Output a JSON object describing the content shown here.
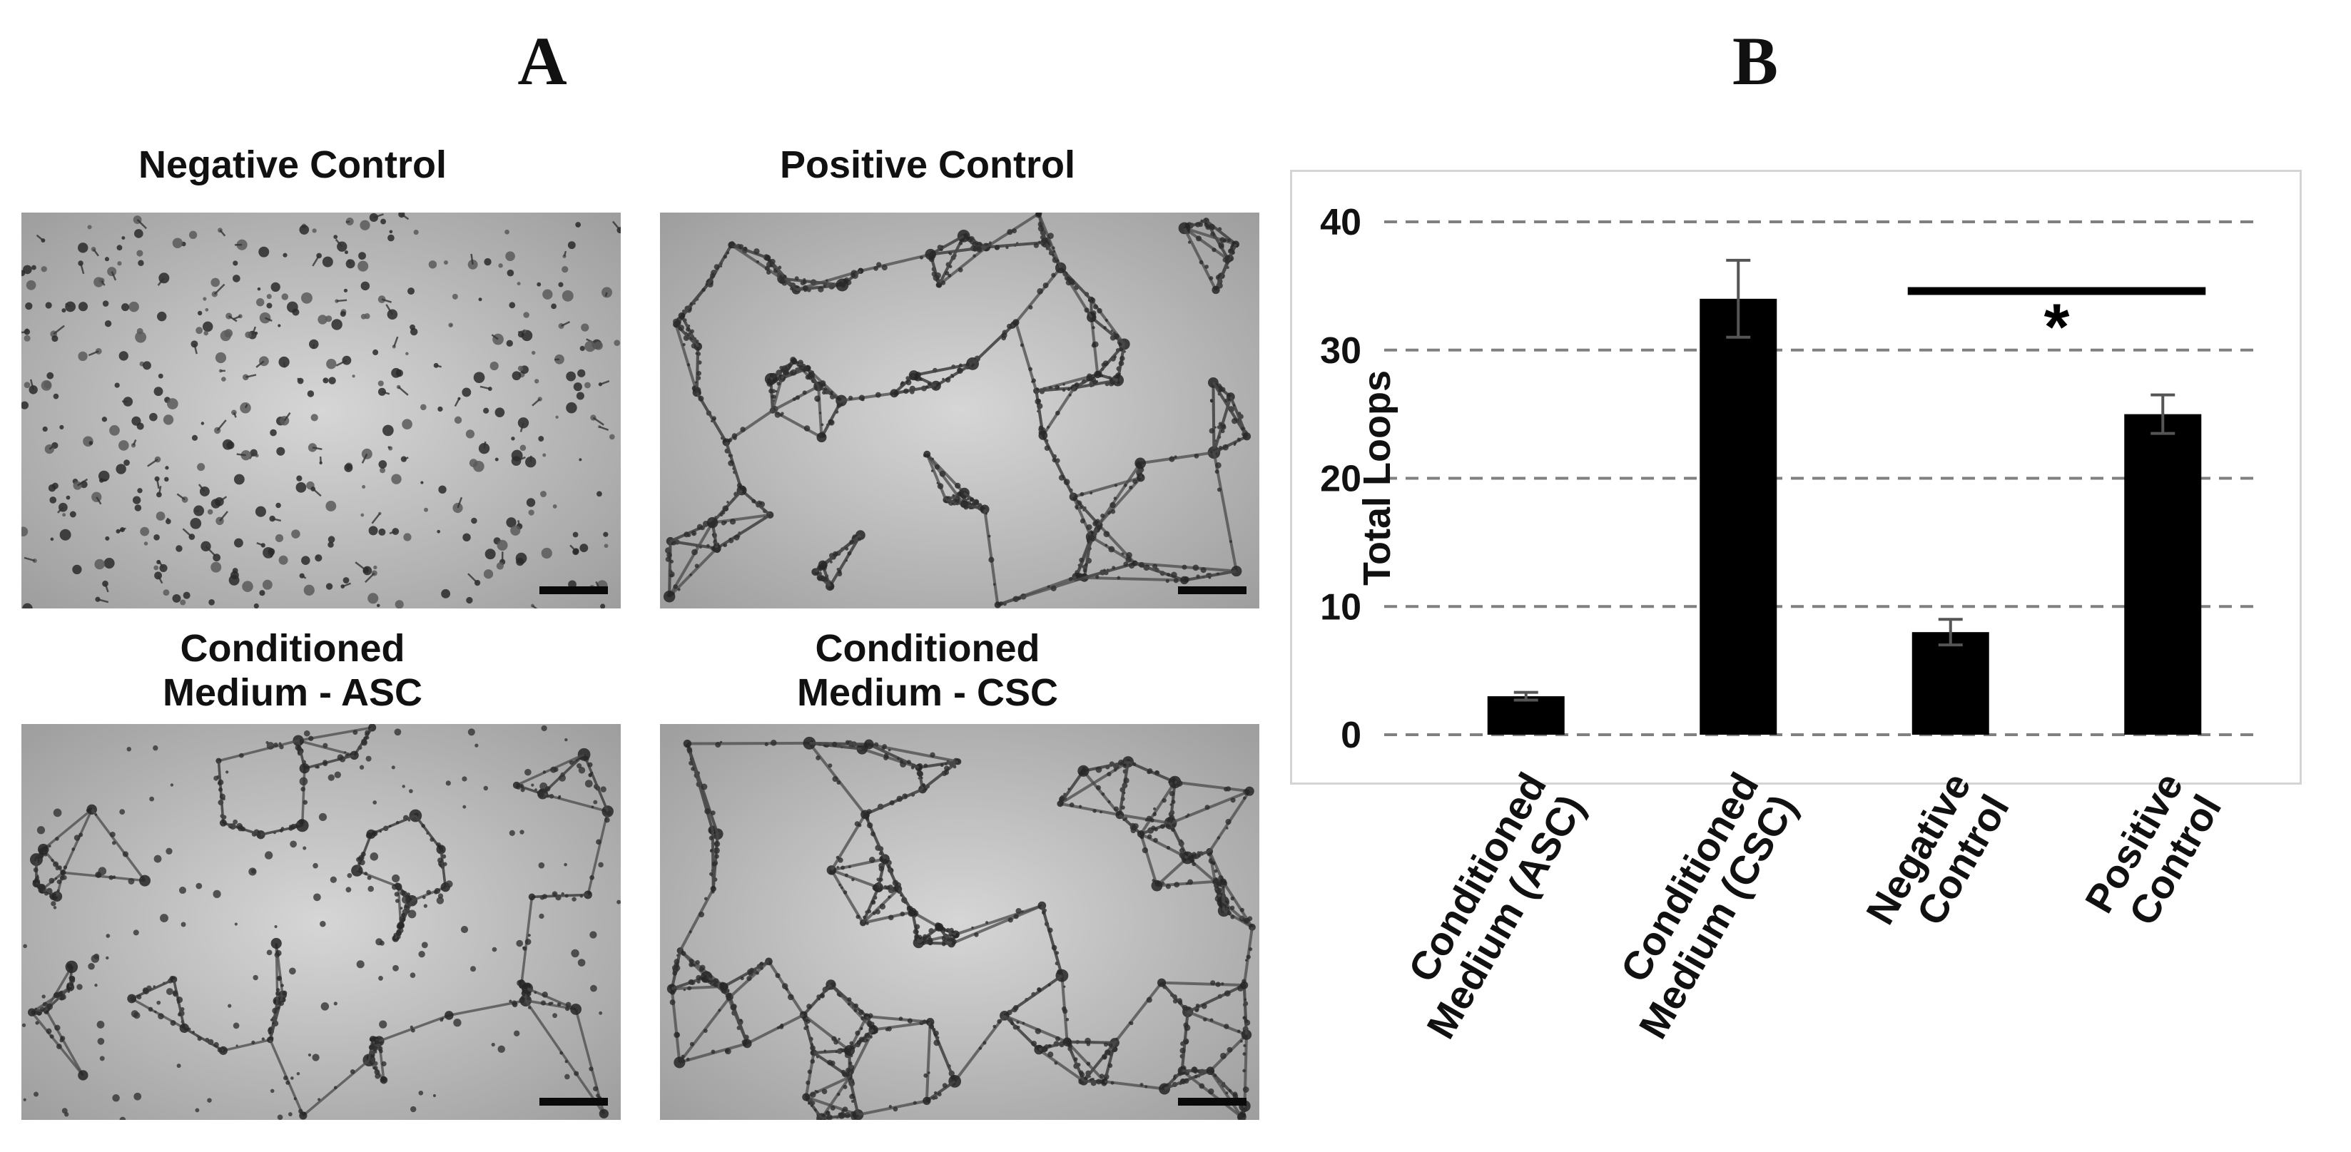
{
  "panel_a": {
    "letter": "A",
    "images": [
      {
        "title": [
          "Negative Control"
        ],
        "pattern": "dispersed-clusters"
      },
      {
        "title": [
          "Positive Control"
        ],
        "pattern": "tube-network"
      },
      {
        "title": [
          "Conditioned",
          "Medium - ASC"
        ],
        "pattern": "partial-network"
      },
      {
        "title": [
          "Conditioned",
          "Medium - CSC"
        ],
        "pattern": "tube-network"
      }
    ]
  },
  "panel_b": {
    "letter": "B"
  },
  "chart_data": {
    "type": "bar",
    "categories": [
      [
        "Conditioned",
        "Medium (ASC)"
      ],
      [
        "Conditioned",
        "Medium (CSC)"
      ],
      [
        "Negative",
        "Control"
      ],
      [
        "Positive",
        "Control"
      ]
    ],
    "values": [
      3,
      34,
      8,
      25
    ],
    "errors": [
      0.3,
      3,
      1,
      1.5
    ],
    "ylabel": "Total Loops",
    "xlabel": "",
    "ylim": [
      0,
      40
    ],
    "yticks": [
      0,
      10,
      20,
      30,
      40
    ],
    "grid": "dashed-horizontal",
    "bar_color": "#000000",
    "significance": {
      "between": [
        2,
        3
      ],
      "marker": "*"
    }
  }
}
